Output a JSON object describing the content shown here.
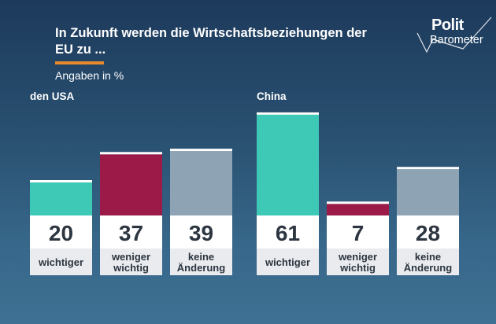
{
  "header": {
    "title": "In Zukunft werden die Wirtschaftsbeziehungen der EU zu ...",
    "subtitle": "Angaben in %"
  },
  "logo": {
    "top": "Polit",
    "bottom": "Barometer"
  },
  "colors": {
    "wichtiger": "#3ec9b6",
    "weniger_wichtig": "#9b1a48",
    "keine_aenderung": "#8ea4b4",
    "accent": "#e8892d"
  },
  "chart_data": [
    {
      "type": "bar",
      "title": "den USA",
      "categories": [
        "wichtiger",
        "weniger wichtig",
        "keine Änderung"
      ],
      "values": [
        20,
        37,
        39
      ],
      "ylim": [
        0,
        70
      ],
      "legend": "none",
      "grid": false
    },
    {
      "type": "bar",
      "title": "China",
      "categories": [
        "wichtiger",
        "weniger wichtig",
        "keine Änderung"
      ],
      "values": [
        61,
        7,
        28
      ],
      "ylim": [
        0,
        70
      ],
      "legend": "none",
      "grid": false
    }
  ]
}
